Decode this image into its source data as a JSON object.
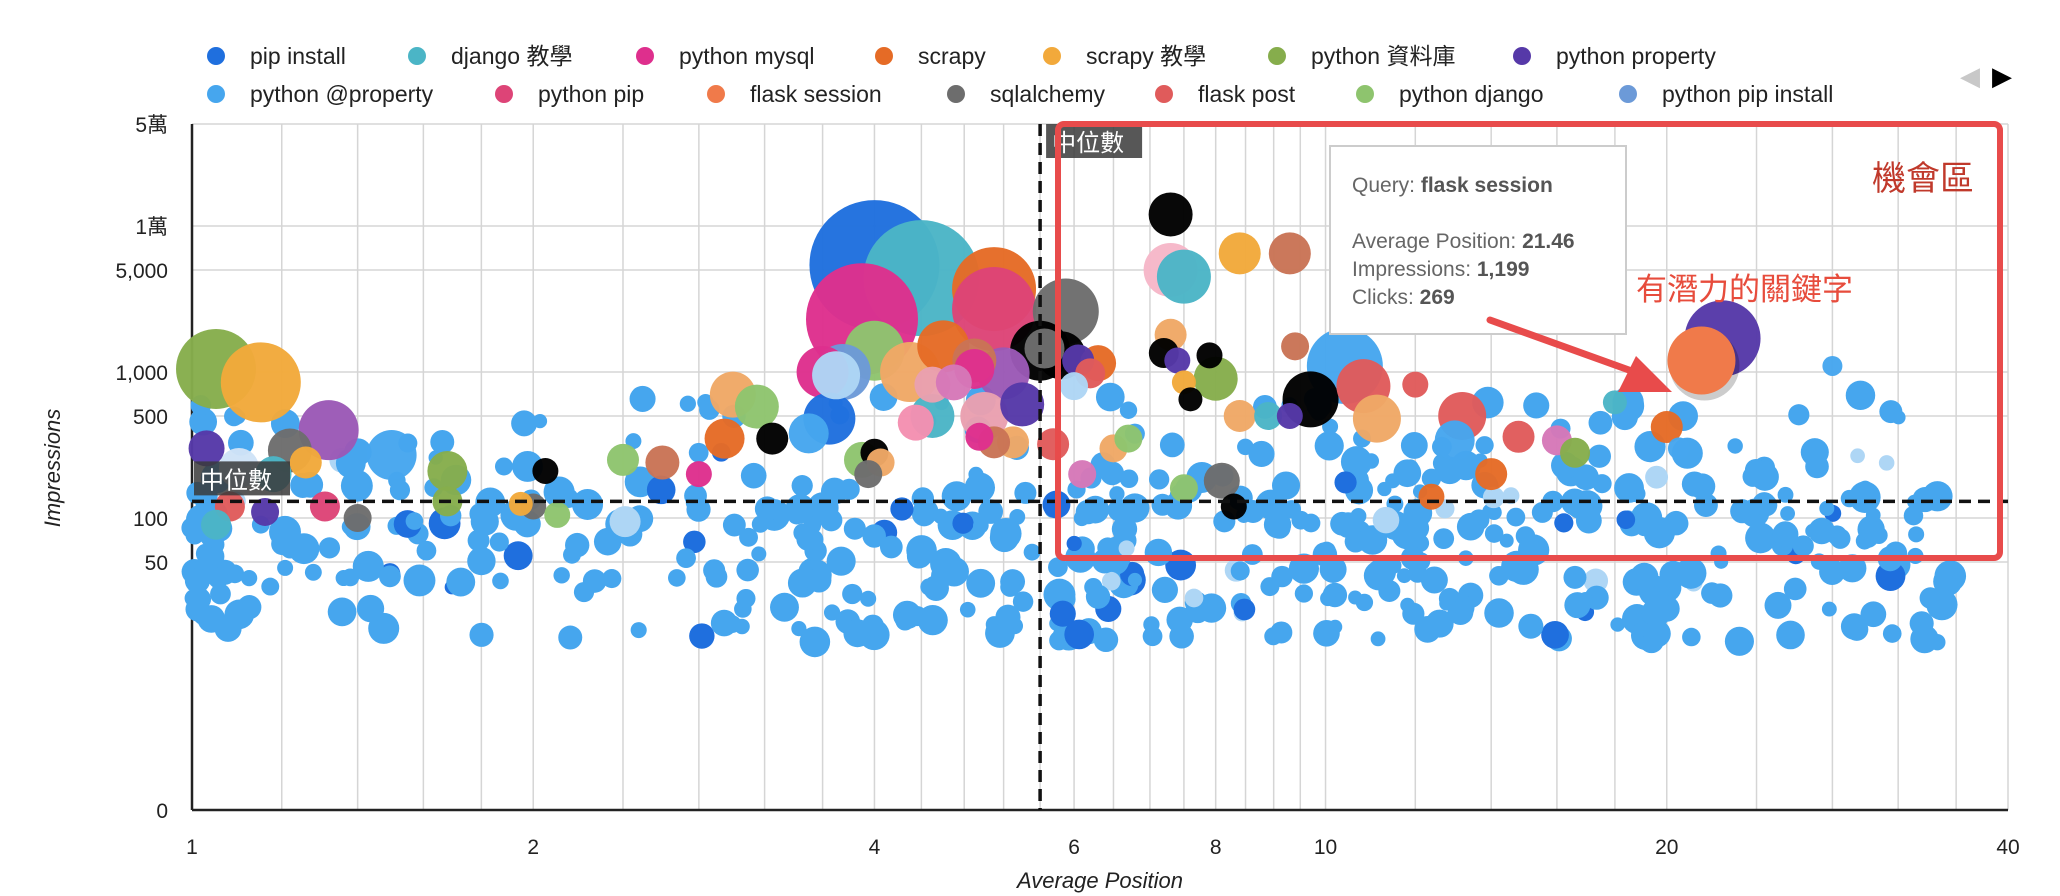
{
  "chart_data": {
    "type": "bubble-scatter",
    "xlabel": "Average Position",
    "ylabel": "Impressions",
    "x_scale": "log",
    "y_scale": "log",
    "xlim": [
      1,
      40
    ],
    "ylim": [
      1,
      50000
    ],
    "x_ticks": [
      {
        "value": 1,
        "label": "1"
      },
      {
        "value": 2,
        "label": "2"
      },
      {
        "value": 4,
        "label": "4"
      },
      {
        "value": 6,
        "label": "6"
      },
      {
        "value": 8,
        "label": "8"
      },
      {
        "value": 10,
        "label": "10"
      },
      {
        "value": 20,
        "label": "20"
      },
      {
        "value": 40,
        "label": "40"
      }
    ],
    "y_ticks": [
      {
        "value": 1,
        "label": "0"
      },
      {
        "value": 50,
        "label": "50"
      },
      {
        "value": 100,
        "label": "100"
      },
      {
        "value": 500,
        "label": "500"
      },
      {
        "value": 1000,
        "label": "1,000"
      },
      {
        "value": 5000,
        "label": "5,000"
      },
      {
        "value": 10000,
        "label": "1萬"
      },
      {
        "value": 50000,
        "label": "5萬"
      }
    ],
    "legend": [
      {
        "name": "pip install",
        "color": "#1f6fde"
      },
      {
        "name": "django 教學",
        "color": "#4bb5c6"
      },
      {
        "name": "python mysql",
        "color": "#de2f8d"
      },
      {
        "name": "scrapy",
        "color": "#e56b26"
      },
      {
        "name": "scrapy 教學",
        "color": "#f2a93b"
      },
      {
        "name": "python 資料庫",
        "color": "#86ad4c"
      },
      {
        "name": "python property",
        "color": "#5639a8"
      },
      {
        "name": "python @property",
        "color": "#46a6ee"
      },
      {
        "name": "python pip",
        "color": "#dd4477"
      },
      {
        "name": "flask session",
        "color": "#f07a4a"
      },
      {
        "name": "sqlalchemy",
        "color": "#6d6d6d"
      },
      {
        "name": "flask post",
        "color": "#e05b5b"
      },
      {
        "name": "python django",
        "color": "#8ec46e"
      },
      {
        "name": "python pip install",
        "color": "#6c9ad8"
      }
    ],
    "median_x": 5.6,
    "median_y": 130,
    "median_label": "中位數",
    "highlight": {
      "query": "flask session",
      "avg_position": 21.46,
      "impressions": 1199,
      "clicks": 269,
      "color": "#f07a4a"
    },
    "bubbles": [
      {
        "x": 4.0,
        "y": 5400,
        "r": 65,
        "color": "#1f6fde"
      },
      {
        "x": 4.4,
        "y": 4400,
        "r": 58,
        "color": "#4bb5c6"
      },
      {
        "x": 3.9,
        "y": 2300,
        "r": 56,
        "color": "#de2f8d"
      },
      {
        "x": 5.1,
        "y": 3700,
        "r": 42,
        "color": "#e56b26"
      },
      {
        "x": 5.1,
        "y": 2700,
        "r": 42,
        "color": "#dd4477"
      },
      {
        "x": 5.9,
        "y": 2600,
        "r": 33,
        "color": "#6d6d6d"
      },
      {
        "x": 1.05,
        "y": 1050,
        "r": 40,
        "color": "#86ad4c"
      },
      {
        "x": 1.15,
        "y": 850,
        "r": 40,
        "color": "#f2a93b"
      },
      {
        "x": 1.32,
        "y": 400,
        "r": 30,
        "color": "#9b59b6"
      },
      {
        "x": 1.22,
        "y": 290,
        "r": 22,
        "color": "#6d6d6d"
      },
      {
        "x": 1.03,
        "y": 300,
        "r": 18,
        "color": "#5639a8"
      },
      {
        "x": 1.1,
        "y": 220,
        "r": 20,
        "color": "#cfe3f7"
      },
      {
        "x": 1.18,
        "y": 200,
        "r": 18,
        "color": "#4bb5c6"
      },
      {
        "x": 1.26,
        "y": 240,
        "r": 16,
        "color": "#f2a93b"
      },
      {
        "x": 1.31,
        "y": 120,
        "r": 15,
        "color": "#dd4477"
      },
      {
        "x": 1.08,
        "y": 120,
        "r": 15,
        "color": "#e05b5b"
      },
      {
        "x": 1.16,
        "y": 110,
        "r": 14,
        "color": "#5639a8"
      },
      {
        "x": 1.4,
        "y": 100,
        "r": 14,
        "color": "#6d6d6d"
      },
      {
        "x": 1.5,
        "y": 270,
        "r": 25,
        "color": "#46a6ee"
      },
      {
        "x": 1.68,
        "y": 210,
        "r": 20,
        "color": "#86ad4c"
      },
      {
        "x": 1.68,
        "y": 130,
        "r": 15,
        "color": "#86ad4c"
      },
      {
        "x": 1.05,
        "y": 90,
        "r": 15,
        "color": "#4bb5c6"
      },
      {
        "x": 2.05,
        "y": 210,
        "r": 13,
        "color": "#000000"
      },
      {
        "x": 2.0,
        "y": 120,
        "r": 13,
        "color": "#6d6d6d"
      },
      {
        "x": 1.95,
        "y": 125,
        "r": 12,
        "color": "#f2a93b"
      },
      {
        "x": 2.1,
        "y": 105,
        "r": 13,
        "color": "#8ec46e"
      },
      {
        "x": 2.4,
        "y": 250,
        "r": 16,
        "color": "#8ec46e"
      },
      {
        "x": 2.6,
        "y": 240,
        "r": 17,
        "color": "#c97456"
      },
      {
        "x": 2.8,
        "y": 200,
        "r": 13,
        "color": "#de2f8d"
      },
      {
        "x": 3.0,
        "y": 700,
        "r": 23,
        "color": "#f0a866"
      },
      {
        "x": 3.15,
        "y": 580,
        "r": 22,
        "color": "#8ec46e"
      },
      {
        "x": 2.95,
        "y": 350,
        "r": 20,
        "color": "#e56b26"
      },
      {
        "x": 3.25,
        "y": 350,
        "r": 16,
        "color": "#000000"
      },
      {
        "x": 3.6,
        "y": 1000,
        "r": 26,
        "color": "#de2f8d"
      },
      {
        "x": 3.75,
        "y": 1000,
        "r": 28,
        "color": "#6c9ad8"
      },
      {
        "x": 3.7,
        "y": 950,
        "r": 24,
        "color": "#aed6f5"
      },
      {
        "x": 3.65,
        "y": 480,
        "r": 26,
        "color": "#1f6fde"
      },
      {
        "x": 3.5,
        "y": 380,
        "r": 20,
        "color": "#46a6ee"
      },
      {
        "x": 3.9,
        "y": 250,
        "r": 18,
        "color": "#8ec46e"
      },
      {
        "x": 4.0,
        "y": 280,
        "r": 14,
        "color": "#000000"
      },
      {
        "x": 4.05,
        "y": 240,
        "r": 14,
        "color": "#f0a866"
      },
      {
        "x": 3.95,
        "y": 200,
        "r": 14,
        "color": "#6d6d6d"
      },
      {
        "x": 4.0,
        "y": 1400,
        "r": 30,
        "color": "#8ec46e"
      },
      {
        "x": 4.3,
        "y": 1000,
        "r": 30,
        "color": "#f0a866"
      },
      {
        "x": 4.6,
        "y": 1500,
        "r": 26,
        "color": "#e56b26"
      },
      {
        "x": 4.9,
        "y": 1200,
        "r": 22,
        "color": "#c97456"
      },
      {
        "x": 4.5,
        "y": 820,
        "r": 18,
        "color": "#e9a0b0"
      },
      {
        "x": 4.7,
        "y": 850,
        "r": 18,
        "color": "#d678b8"
      },
      {
        "x": 4.9,
        "y": 1050,
        "r": 20,
        "color": "#de2f8d"
      },
      {
        "x": 5.2,
        "y": 980,
        "r": 26,
        "color": "#9b59b6"
      },
      {
        "x": 5.4,
        "y": 600,
        "r": 22,
        "color": "#5639a8"
      },
      {
        "x": 5.0,
        "y": 500,
        "r": 24,
        "color": "#e9a0b0"
      },
      {
        "x": 4.5,
        "y": 500,
        "r": 22,
        "color": "#4bb5c6"
      },
      {
        "x": 4.35,
        "y": 450,
        "r": 18,
        "color": "#f48fb1"
      },
      {
        "x": 5.6,
        "y": 1400,
        "r": 30,
        "color": "#000000"
      },
      {
        "x": 5.85,
        "y": 1300,
        "r": 24,
        "color": "#000000"
      },
      {
        "x": 5.65,
        "y": 1450,
        "r": 20,
        "color": "#6d6d6d"
      },
      {
        "x": 5.3,
        "y": 330,
        "r": 16,
        "color": "#f0a866"
      },
      {
        "x": 5.1,
        "y": 330,
        "r": 16,
        "color": "#c97456"
      },
      {
        "x": 4.95,
        "y": 360,
        "r": 14,
        "color": "#de2f8d"
      },
      {
        "x": 6.05,
        "y": 1200,
        "r": 16,
        "color": "#5639a8"
      },
      {
        "x": 6.3,
        "y": 1150,
        "r": 18,
        "color": "#e56b26"
      },
      {
        "x": 6.2,
        "y": 980,
        "r": 15,
        "color": "#e05b5b"
      },
      {
        "x": 6.0,
        "y": 800,
        "r": 14,
        "color": "#aed6f5"
      },
      {
        "x": 6.5,
        "y": 300,
        "r": 14,
        "color": "#f0a866"
      },
      {
        "x": 7.3,
        "y": 12000,
        "r": 22,
        "color": "#000000"
      },
      {
        "x": 7.3,
        "y": 5000,
        "r": 27,
        "color": "#f6b7c8"
      },
      {
        "x": 7.5,
        "y": 4500,
        "r": 27,
        "color": "#4bb5c6"
      },
      {
        "x": 8.4,
        "y": 6500,
        "r": 21,
        "color": "#f2a93b"
      },
      {
        "x": 9.3,
        "y": 6500,
        "r": 21,
        "color": "#c97456"
      },
      {
        "x": 7.3,
        "y": 1800,
        "r": 16,
        "color": "#f0a866"
      },
      {
        "x": 7.2,
        "y": 1350,
        "r": 15,
        "color": "#000000"
      },
      {
        "x": 7.9,
        "y": 1300,
        "r": 13,
        "color": "#000000"
      },
      {
        "x": 7.4,
        "y": 1200,
        "r": 13,
        "color": "#5639a8"
      },
      {
        "x": 8.0,
        "y": 900,
        "r": 22,
        "color": "#86ad4c"
      },
      {
        "x": 7.5,
        "y": 850,
        "r": 12,
        "color": "#f2a93b"
      },
      {
        "x": 7.6,
        "y": 650,
        "r": 12,
        "color": "#000000"
      },
      {
        "x": 8.4,
        "y": 500,
        "r": 16,
        "color": "#f0a866"
      },
      {
        "x": 8.9,
        "y": 500,
        "r": 14,
        "color": "#4bb5c6"
      },
      {
        "x": 9.4,
        "y": 1500,
        "r": 14,
        "color": "#c97456"
      },
      {
        "x": 9.7,
        "y": 650,
        "r": 28,
        "color": "#000000"
      },
      {
        "x": 10.4,
        "y": 1100,
        "r": 38,
        "color": "#46a6ee"
      },
      {
        "x": 10.8,
        "y": 800,
        "r": 27,
        "color": "#e05b5b"
      },
      {
        "x": 11.1,
        "y": 480,
        "r": 24,
        "color": "#f0a866"
      },
      {
        "x": 12.0,
        "y": 820,
        "r": 13,
        "color": "#e05b5b"
      },
      {
        "x": 9.3,
        "y": 500,
        "r": 13,
        "color": "#5639a8"
      },
      {
        "x": 13.2,
        "y": 500,
        "r": 24,
        "color": "#e05b5b"
      },
      {
        "x": 13.0,
        "y": 340,
        "r": 20,
        "color": "#46a6ee"
      },
      {
        "x": 14.0,
        "y": 200,
        "r": 16,
        "color": "#e56b26"
      },
      {
        "x": 14.8,
        "y": 360,
        "r": 16,
        "color": "#e05b5b"
      },
      {
        "x": 16.0,
        "y": 340,
        "r": 15,
        "color": "#d678b8"
      },
      {
        "x": 16.6,
        "y": 280,
        "r": 15,
        "color": "#86ad4c"
      },
      {
        "x": 18.0,
        "y": 620,
        "r": 12,
        "color": "#4bb5c6"
      },
      {
        "x": 20.0,
        "y": 420,
        "r": 16,
        "color": "#e56b26"
      },
      {
        "x": 22.4,
        "y": 1700,
        "r": 38,
        "color": "#5639a8"
      },
      {
        "x": 21.46,
        "y": 1199,
        "r": 33,
        "color": "#f07a4a"
      },
      {
        "x": 20.5,
        "y": 300,
        "r": 11,
        "color": "#46a6ee"
      },
      {
        "x": 28.0,
        "y": 1100,
        "r": 10,
        "color": "#46a6ee"
      },
      {
        "x": 12.4,
        "y": 140,
        "r": 13,
        "color": "#e56b26"
      },
      {
        "x": 8.1,
        "y": 180,
        "r": 18,
        "color": "#6d6d6d"
      },
      {
        "x": 7.5,
        "y": 160,
        "r": 14,
        "color": "#8ec46e"
      },
      {
        "x": 8.3,
        "y": 120,
        "r": 13,
        "color": "#000000"
      },
      {
        "x": 6.1,
        "y": 200,
        "r": 14,
        "color": "#d678b8"
      },
      {
        "x": 5.75,
        "y": 320,
        "r": 16,
        "color": "#e05b5b"
      },
      {
        "x": 6.7,
        "y": 350,
        "r": 14,
        "color": "#8ec46e"
      }
    ]
  },
  "opportunity_label": "機會區",
  "potential_label": "有潛力的關鍵字",
  "tooltip": {
    "query_label": "Query: ",
    "query_value": "flask session",
    "pos_label": "Average Position: ",
    "pos_value": "21.46",
    "imp_label": "Impressions: ",
    "imp_value": "1,199",
    "clicks_label": "Clicks: ",
    "clicks_value": "269"
  },
  "legend_nav": {
    "prev": "◀",
    "next": "▶"
  },
  "colors": {
    "default_bubble": "#46a6ee",
    "opportunity_box": "#e84b4b",
    "grid": "#d5d5d5"
  }
}
